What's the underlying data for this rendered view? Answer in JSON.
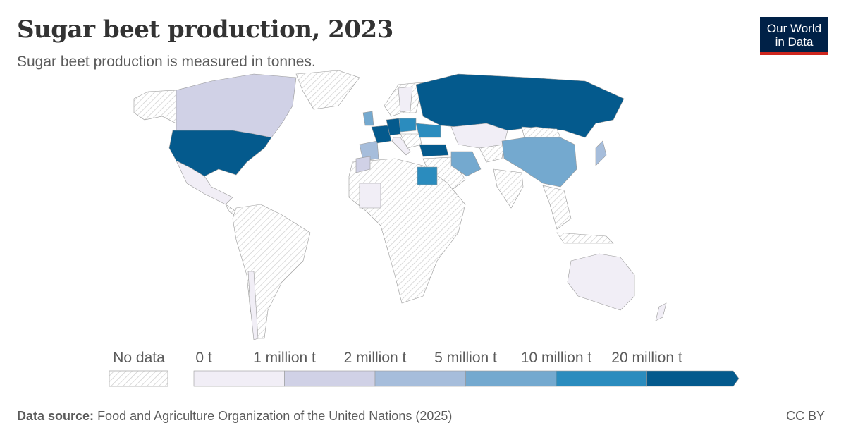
{
  "header": {
    "title": "Sugar beet production, 2023",
    "subtitle": "Sugar beet production is measured in tonnes."
  },
  "logo": {
    "line1": "Our World",
    "line2": "in Data",
    "bg": "#002147",
    "accent": "#ce261e"
  },
  "legend": {
    "no_data_label": "No data",
    "tick_labels": [
      "0 t",
      "1 million t",
      "2 million t",
      "5 million t",
      "10 million t",
      "20 million t"
    ],
    "bins": [
      {
        "range": "0–1 million t",
        "color": "#f1eef6"
      },
      {
        "range": "1–2 million t",
        "color": "#d0d1e6"
      },
      {
        "range": "2–5 million t",
        "color": "#a6bddb"
      },
      {
        "range": "5–10 million t",
        "color": "#74a9cf"
      },
      {
        "range": "10–20 million t",
        "color": "#2b8cbe"
      },
      {
        "range": ">20 million t",
        "color": "#045a8d"
      }
    ],
    "no_data_color": "hatched-grey"
  },
  "country_bins": {
    "United States": 5,
    "Russia": 5,
    "France": 5,
    "Germany": 5,
    "Turkey": 5,
    "Poland": 4,
    "Ukraine": 4,
    "Egypt": 4,
    "China": 3,
    "Iran": 3,
    "United Kingdom": 3,
    "Spain": 2,
    "Japan": 2,
    "Canada": 1,
    "Morocco": 1,
    "Mexico": 0,
    "Chile": 0,
    "Kazakhstan": 0,
    "Australia": 0,
    "Sweden": 0,
    "Italy": 0,
    "West Africa": 0,
    "New Zealand": 0
  },
  "footer": {
    "source_label": "Data source:",
    "source": "Food and Agriculture Organization of the United Nations (2025)",
    "license": "CC BY"
  }
}
